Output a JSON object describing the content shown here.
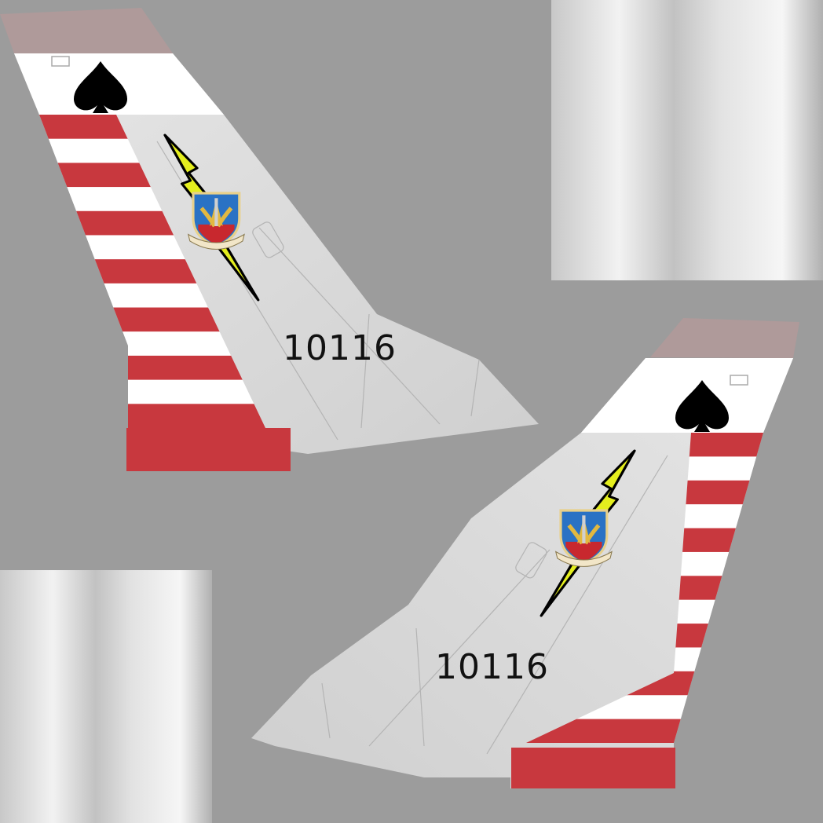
{
  "livery": {
    "tail_number": "10116",
    "insignia": "spade-icon",
    "markings": [
      "lightning-bolt-icon",
      "command-shield-emblem"
    ],
    "colors": {
      "background": "#9c9c9c",
      "fin_skin": "#d9d9d9",
      "stripe_red": "#c8383e",
      "stripe_white": "#ffffff",
      "bolt_yellow": "#e4ee1e",
      "cap_pink": "#b49a9a",
      "spade": "#000000"
    },
    "stripe_count": 13
  }
}
